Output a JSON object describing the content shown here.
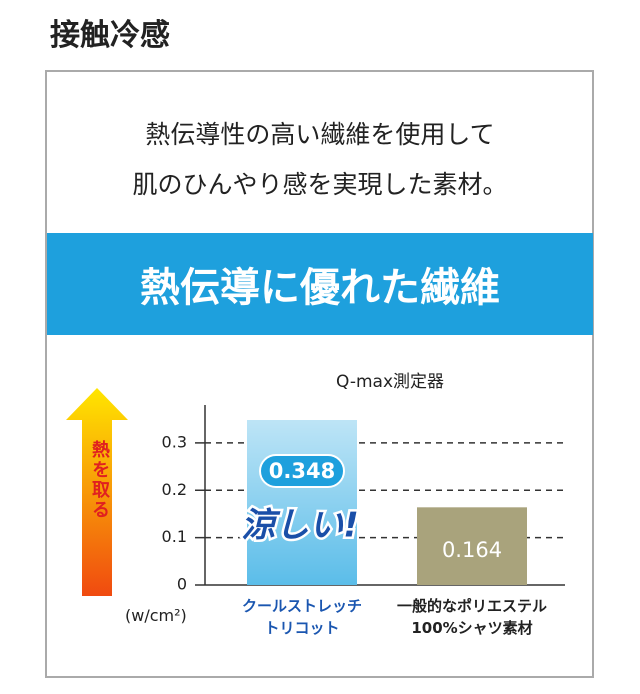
{
  "header": {
    "title": "接触冷感"
  },
  "description": [
    "熱伝導性の高い繊維を使用して",
    "肌のひんやり感を実現した素材。"
  ],
  "banner": "熱伝導に優れた繊維",
  "chart_data": {
    "type": "bar",
    "title": "Q-max測定器",
    "categories": [
      "クールストレッチ\nトリコット",
      "一般的なポリエステル\n100%シャツ素材"
    ],
    "values": [
      0.348,
      0.164
    ],
    "colors": [
      "#5bbde9",
      "#a9a37c"
    ],
    "ylabel": "(w/cm²)",
    "ylim": [
      0,
      0.38
    ],
    "yticks": [
      0,
      0.1,
      0.2,
      0.3
    ],
    "grid": true,
    "annotations": [
      "熱を取る",
      "涼しい!"
    ]
  }
}
